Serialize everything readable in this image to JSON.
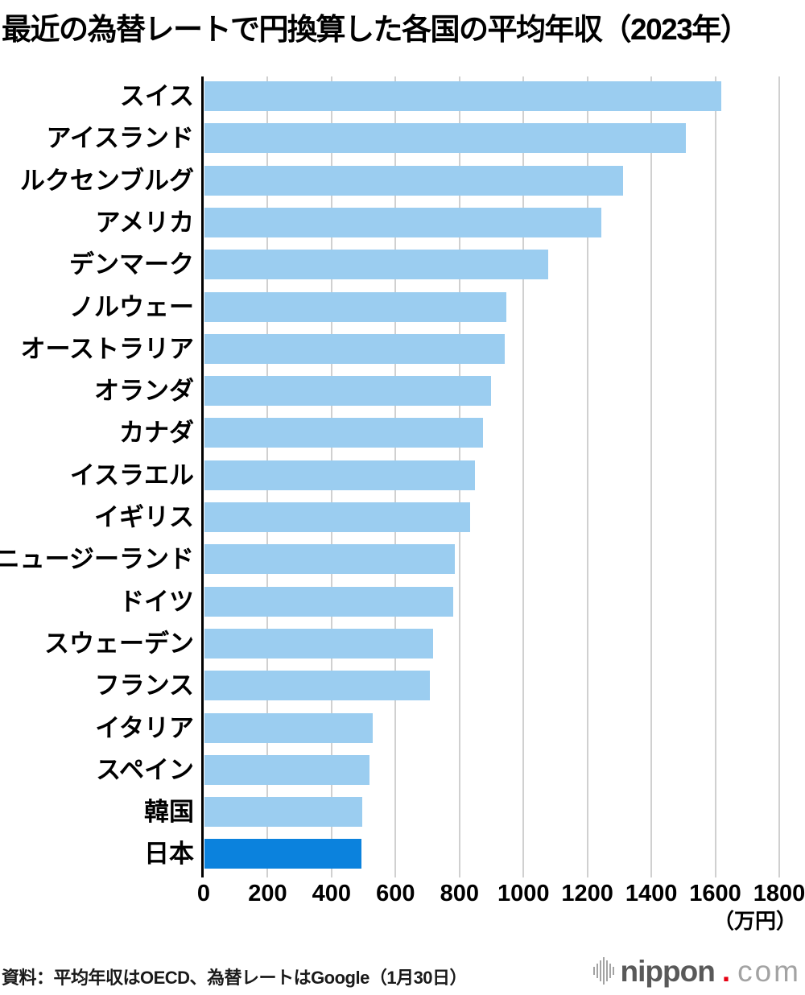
{
  "title": "最近の為替レートで円換算した各国の平均年収（2023年）",
  "chart_data": {
    "type": "bar",
    "orientation": "horizontal",
    "title": "最近の為替レートで円換算した各国の平均年収（2023年）",
    "categories": [
      "スイス",
      "アイスランド",
      "ルクセンブルグ",
      "アメリカ",
      "デンマーク",
      "ノルウェー",
      "オーストラリア",
      "オランダ",
      "カナダ",
      "イスラエル",
      "イギリス",
      "ニュージーランド",
      "ドイツ",
      "スウェーデン",
      "フランス",
      "イタリア",
      "スペイン",
      "韓国",
      "日本"
    ],
    "values": [
      1615,
      1505,
      1310,
      1240,
      1075,
      945,
      940,
      895,
      870,
      845,
      830,
      782,
      778,
      715,
      705,
      525,
      515,
      494,
      491
    ],
    "xlabel": "",
    "ylabel": "",
    "unit_label": "（万円）",
    "xlim": [
      0,
      1800
    ],
    "xticks": [
      0,
      200,
      400,
      600,
      800,
      1000,
      1200,
      1400,
      1600,
      1800
    ],
    "grid": "vertical",
    "legend": "none",
    "bar_color": "#9bcdf0",
    "highlight_category": "日本",
    "highlight_color": "#0b82dd",
    "gridline_color": "#d0d0d0"
  },
  "footer": {
    "source": "資料：平均年収はOECD、為替レートはGoogle（1月30日）"
  },
  "logo": {
    "name": "nippon.com",
    "icon": "soundwave-bars-icon",
    "text_main": "nippon",
    "text_dot": ".",
    "text_tld": "com",
    "dot_color": "#e60012"
  }
}
